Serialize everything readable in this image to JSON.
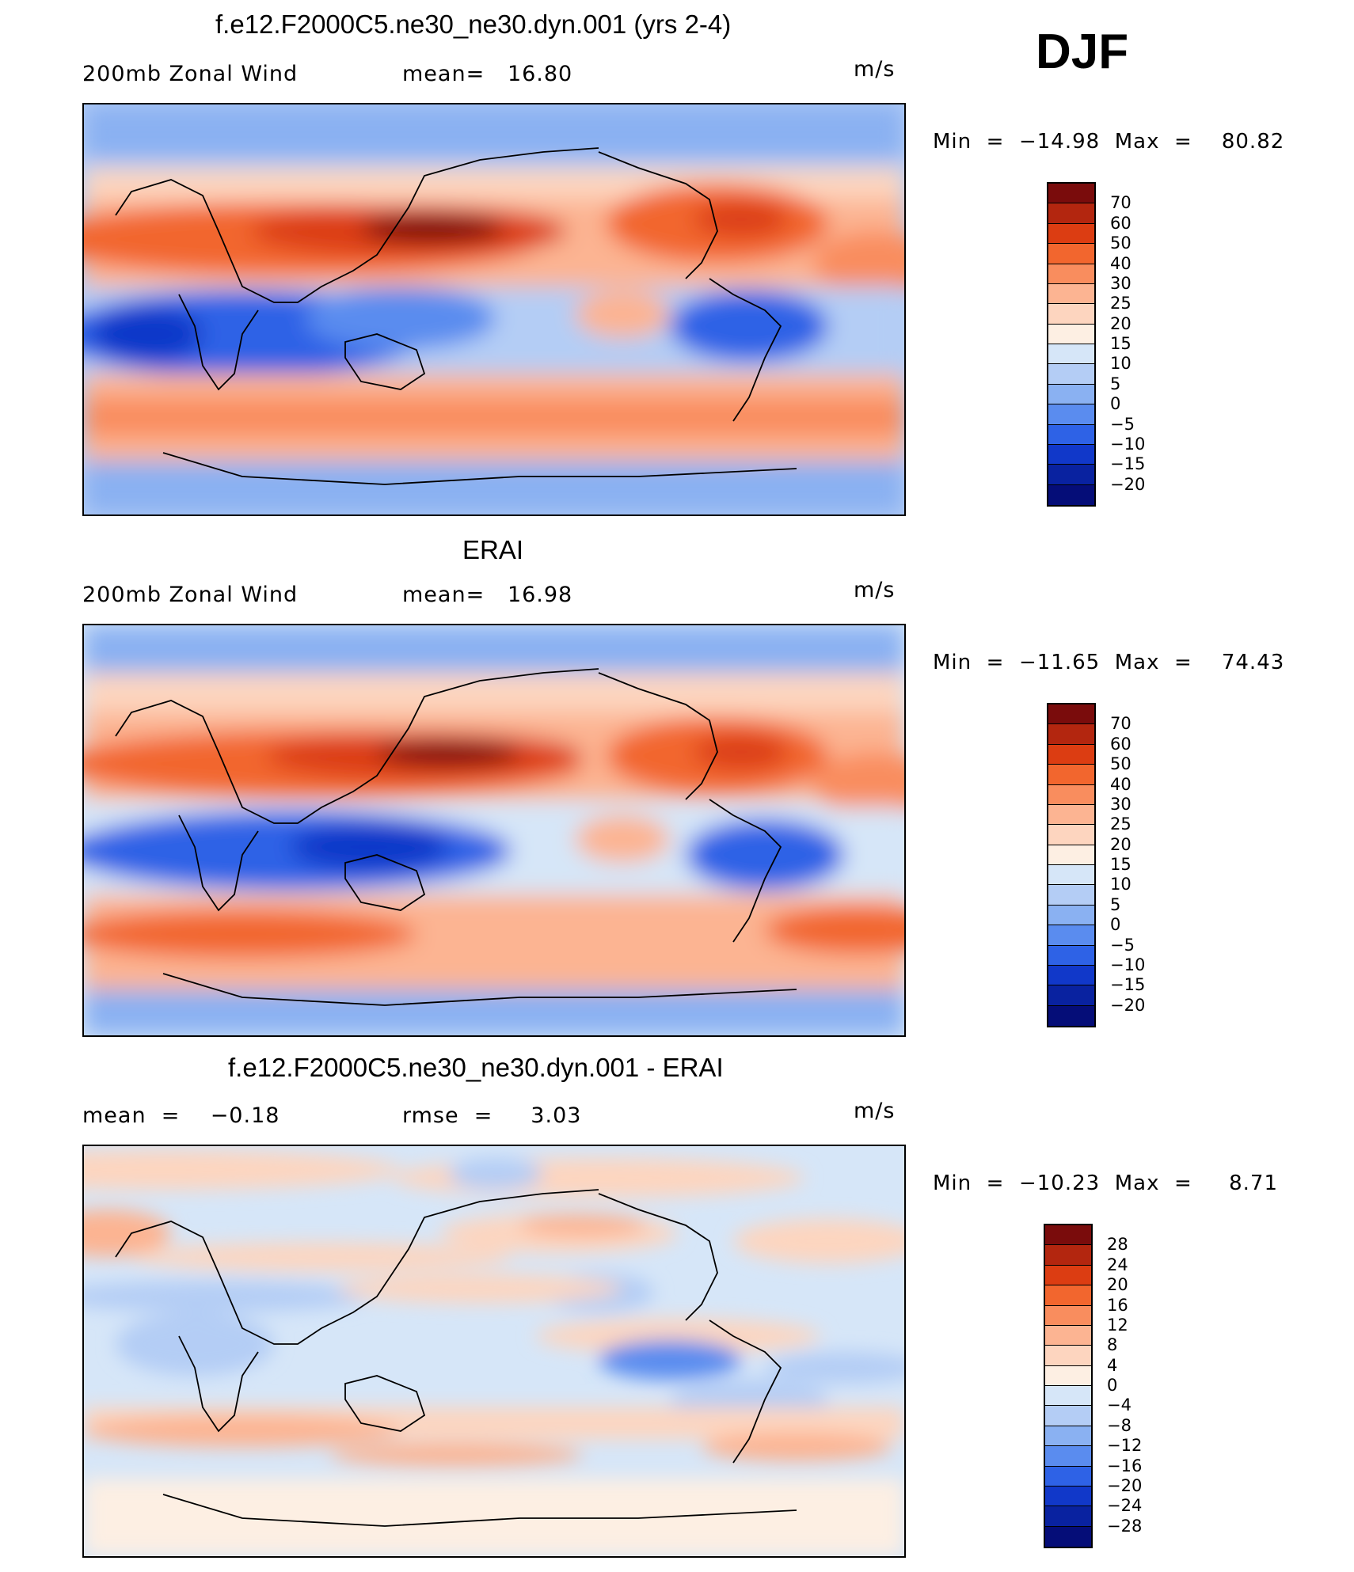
{
  "season": "DJF",
  "chart_data": [
    {
      "type": "heatmap",
      "title": "f.e12.F2000C5.ne30_ne30.dyn.001 (yrs 2-4)",
      "left_label": "200mb Zonal Wind",
      "center_label": "mean=   16.80",
      "units": "m/s",
      "min_max": "Min  =  −14.98  Max  =    80.82",
      "min": -14.98,
      "max": 80.82,
      "mean": 16.8,
      "colorbar": {
        "labels": [
          "70",
          "60",
          "50",
          "40",
          "30",
          "25",
          "20",
          "15",
          "10",
          "5",
          "0",
          "−5",
          "−10",
          "−15",
          "−20"
        ],
        "colors": [
          "#7a0c0c",
          "#b3260f",
          "#dc3d12",
          "#f2662e",
          "#f98d5e",
          "#fcb492",
          "#fdd5bf",
          "#fdefe3",
          "#d6e6f8",
          "#b4cdf5",
          "#8ab1f2",
          "#5a8cef",
          "#2e62e6",
          "#1138c9",
          "#0922a0",
          "#050d78"
        ]
      }
    },
    {
      "type": "heatmap",
      "title": "ERAI",
      "left_label": "200mb Zonal Wind",
      "center_label": "mean=   16.98",
      "units": "m/s",
      "min_max": "Min  =  −11.65  Max  =    74.43",
      "min": -11.65,
      "max": 74.43,
      "mean": 16.98,
      "colorbar": {
        "labels": [
          "70",
          "60",
          "50",
          "40",
          "30",
          "25",
          "20",
          "15",
          "10",
          "5",
          "0",
          "−5",
          "−10",
          "−15",
          "−20"
        ],
        "colors": [
          "#7a0c0c",
          "#b3260f",
          "#dc3d12",
          "#f2662e",
          "#f98d5e",
          "#fcb492",
          "#fdd5bf",
          "#fdefe3",
          "#d6e6f8",
          "#b4cdf5",
          "#8ab1f2",
          "#5a8cef",
          "#2e62e6",
          "#1138c9",
          "#0922a0",
          "#050d78"
        ]
      }
    },
    {
      "type": "heatmap",
      "title": "f.e12.F2000C5.ne30_ne30.dyn.001 - ERAI",
      "left_label": "mean  =    −0.18",
      "center_label": "rmse  =     3.03",
      "units": "m/s",
      "min_max": "Min  =  −10.23  Max  =     8.71",
      "min": -10.23,
      "max": 8.71,
      "mean": -0.18,
      "rmse": 3.03,
      "colorbar": {
        "labels": [
          "28",
          "24",
          "20",
          "16",
          "12",
          "8",
          "4",
          "0",
          "−4",
          "−8",
          "−12",
          "−16",
          "−20",
          "−24",
          "−28"
        ],
        "colors": [
          "#7a0c0c",
          "#b3260f",
          "#dc3d12",
          "#f2662e",
          "#f98d5e",
          "#fcb492",
          "#fdd5bf",
          "#fdefe3",
          "#d6e6f8",
          "#b4cdf5",
          "#8ab1f2",
          "#5a8cef",
          "#2e62e6",
          "#1138c9",
          "#0922a0",
          "#050d78"
        ]
      }
    }
  ]
}
